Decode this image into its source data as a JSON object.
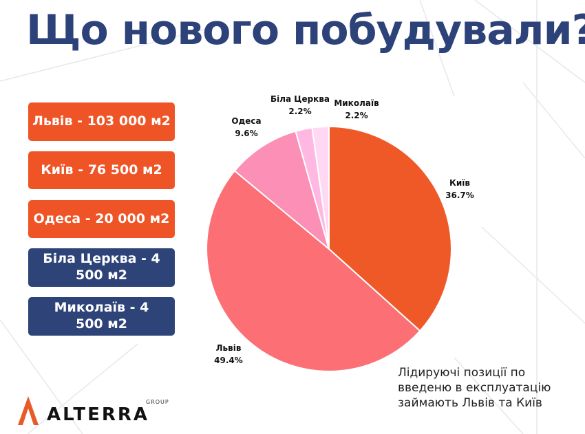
{
  "title": "Що нового побудували?",
  "title_color": "#2c4278",
  "city_boxes": [
    {
      "text": "Львів  - 103 000 м2",
      "color": "#ef5426"
    },
    {
      "text": "Київ - 76 500 м2",
      "color": "#ef5426"
    },
    {
      "text": "Одеса - 20 000 м2",
      "color": "#ef5426"
    },
    {
      "text": "Біла Церква - 4 500 м2",
      "color": "#2e4478"
    },
    {
      "text": "Миколаїв - 4 500 м2",
      "color": "#2e4478"
    }
  ],
  "chart_data": {
    "type": "pie",
    "start_angle_deg": 0,
    "direction": "clockwise",
    "slices": [
      {
        "label": "Київ",
        "pct_label": "36.7%",
        "value": 36.7,
        "color": "#ef5928"
      },
      {
        "label": "Львів",
        "pct_label": "49.4%",
        "value": 49.4,
        "color": "#fb6f75"
      },
      {
        "label": "Одеса",
        "pct_label": "9.6%",
        "value": 9.6,
        "color": "#fb8fb5"
      },
      {
        "label": "Біла Церква",
        "pct_label": "2.2%",
        "value": 2.2,
        "color": "#ffb8e2"
      },
      {
        "label": "Миколаїв",
        "pct_label": "2.2%",
        "value": 2.2,
        "color": "#ffd8f4"
      }
    ]
  },
  "note": "Лідируючі позиції по введеню в експлуатацію займають Львів та Київ",
  "logo": {
    "name": "ALTERRA",
    "sub": "GROUP",
    "mark_color": "#e85a27"
  }
}
